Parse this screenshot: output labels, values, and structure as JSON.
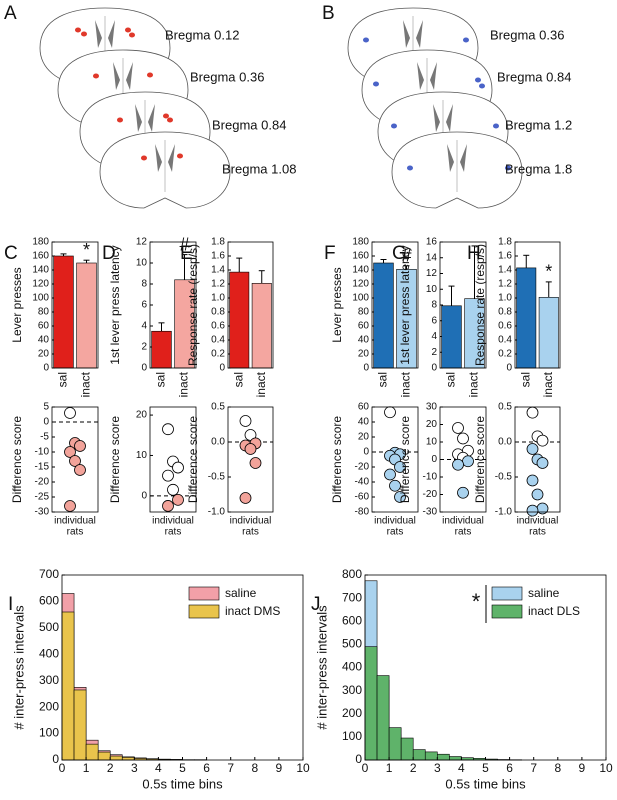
{
  "sections_a": {
    "panel": "A",
    "labels": [
      "Bregma 0.12",
      "Bregma 0.36",
      "Bregma 0.84",
      "Bregma 1.08"
    ],
    "color": "#e0382a"
  },
  "sections_b": {
    "panel": "B",
    "labels": [
      "Bregma 0.36",
      "Bregma 0.84",
      "Bregma 1.2",
      "Bregma 1.8"
    ],
    "color": "#4a63c8"
  },
  "chart_data": [
    {
      "type": "bar",
      "panel": "C",
      "ylabel": "Lever presses",
      "categories": [
        "sal",
        "inact"
      ],
      "values": [
        160,
        150
      ],
      "errors": [
        3,
        4
      ],
      "colors": [
        "#e0201b",
        "#f4a6a0"
      ],
      "annotation": "*",
      "ylim": [
        0,
        180
      ],
      "yticks": [
        0,
        20,
        40,
        60,
        80,
        100,
        120,
        140,
        160,
        180
      ]
    },
    {
      "type": "dot",
      "ylabel": "Difference score",
      "xlabel": [
        "individual",
        "rats"
      ],
      "values": [
        3,
        -7,
        -8,
        -10,
        -13,
        -16,
        -28
      ],
      "color": "#f2a39a",
      "positive_color": "#ffffff",
      "ylim": [
        -30,
        5
      ],
      "yticks": [
        -30,
        -25,
        -20,
        -15,
        -10,
        -5,
        0,
        5
      ]
    },
    {
      "type": "bar",
      "panel": "D",
      "ylabel": "1st lever press latency",
      "categories": [
        "sal",
        "inact"
      ],
      "values": [
        3.5,
        8.4
      ],
      "errors": [
        0.8,
        2.4
      ],
      "colors": [
        "#e0201b",
        "#f4a6a0"
      ],
      "annotation": "#",
      "ylim": [
        0,
        12
      ],
      "yticks": [
        0,
        2,
        4,
        6,
        8,
        10,
        12
      ]
    },
    {
      "type": "dot",
      "ylabel": "Difference score",
      "xlabel": [
        "individual",
        "rats"
      ],
      "values": [
        16.5,
        8.5,
        7,
        5,
        1.5,
        -1,
        -2.5
      ],
      "color": "#f2a39a",
      "positive_color": "#ffffff",
      "ylim": [
        -4,
        22
      ],
      "yticks": [
        0,
        10,
        20
      ]
    },
    {
      "type": "bar",
      "panel": "E",
      "ylabel": "Response rate (resp/s)",
      "categories": [
        "sal",
        "inact"
      ],
      "values": [
        1.37,
        1.21
      ],
      "errors": [
        0.2,
        0.18
      ],
      "colors": [
        "#e0201b",
        "#f4a6a0"
      ],
      "ylim": [
        0,
        1.8
      ],
      "yticks": [
        0,
        0.2,
        0.4,
        0.6,
        0.8,
        {
          "value": 1,
          "label": "1.0"
        },
        1.2,
        1.4,
        1.6,
        1.8
      ]
    },
    {
      "type": "dot",
      "ylabel": "Difference score",
      "xlabel": [
        "individual",
        "rats"
      ],
      "values": [
        0.3,
        0.1,
        -0.02,
        -0.05,
        -0.1,
        -0.3,
        -0.8
      ],
      "color": "#f2a39a",
      "positive_color": "#ffffff",
      "ylim": [
        -1,
        0.5
      ],
      "yticks": [
        {
          "value": -1,
          "label": "-1.0"
        },
        -0.5,
        {
          "value": 0,
          "label": "0.0"
        },
        0.5
      ]
    },
    {
      "type": "bar",
      "panel": "F",
      "ylabel": "Lever presses",
      "categories": [
        "sal",
        "inact"
      ],
      "values": [
        150,
        141
      ],
      "errors": [
        5,
        5
      ],
      "colors": [
        "#1f6fb5",
        "#a9d2ee"
      ],
      "annotation": "#",
      "ylim": [
        0,
        180
      ],
      "yticks": [
        0,
        20,
        40,
        60,
        80,
        100,
        120,
        140,
        160,
        180
      ]
    },
    {
      "type": "dot",
      "ylabel": "Difference score",
      "xlabel": [
        "individual",
        "rats"
      ],
      "values": [
        53,
        -1,
        -3,
        -5,
        -10,
        -20,
        -30,
        -45,
        -60
      ],
      "color": "#a9d2ee",
      "positive_color": "#ffffff",
      "ylim": [
        -80,
        60
      ],
      "yticks": [
        -80,
        -60,
        -40,
        -20,
        0,
        20,
        40,
        60
      ]
    },
    {
      "type": "bar",
      "panel": "G",
      "ylabel": "1st lever press latency",
      "categories": [
        "sal",
        "inact"
      ],
      "values": [
        7.9,
        8.8
      ],
      "errors": [
        2.5,
        6.7
      ],
      "colors": [
        "#1f6fb5",
        "#a9d2ee"
      ],
      "ylim": [
        0,
        16
      ],
      "yticks": [
        0,
        2,
        4,
        6,
        8,
        10,
        12,
        14,
        16
      ]
    },
    {
      "type": "dot",
      "ylabel": "Difference score",
      "xlabel": [
        "individual",
        "rats"
      ],
      "values": [
        18,
        12,
        5,
        3,
        1,
        -1,
        -3,
        -19
      ],
      "color": "#a9d2ee",
      "positive_color": "#ffffff",
      "ylim": [
        -30,
        30
      ],
      "yticks": [
        -30,
        -20,
        -10,
        0,
        10,
        20,
        30
      ]
    },
    {
      "type": "bar",
      "panel": "H",
      "ylabel": "Response rate (resp/s)",
      "categories": [
        "sal",
        "inact"
      ],
      "values": [
        1.43,
        1.01
      ],
      "errors": [
        0.18,
        0.22
      ],
      "colors": [
        "#1f6fb5",
        "#a9d2ee"
      ],
      "annotation": "*",
      "ylim": [
        0,
        1.8
      ],
      "yticks": [
        0,
        0.2,
        0.4,
        0.6,
        0.8,
        {
          "value": 1,
          "label": "1.0"
        },
        1.2,
        1.4,
        1.6,
        1.8
      ]
    },
    {
      "type": "dot",
      "ylabel": "Difference score",
      "xlabel": [
        "individual",
        "rats"
      ],
      "values": [
        0.42,
        0.08,
        0.02,
        -0.1,
        -0.25,
        -0.3,
        -0.55,
        -0.75,
        -0.95,
        -0.98
      ],
      "color": "#a9d2ee",
      "positive_color": "#ffffff",
      "ylim": [
        -1,
        0.5
      ],
      "yticks": [
        {
          "value": -1,
          "label": "-1.0"
        },
        -0.5,
        {
          "value": 0,
          "label": "0.0"
        },
        0.5
      ]
    },
    {
      "type": "histogram",
      "panel": "I",
      "xlabel": "0.5s time bins",
      "ylabel": "# inter-press intervals",
      "legend": "upper right",
      "bins": [
        0,
        0.5,
        1,
        1.5,
        2,
        2.5,
        3,
        3.5,
        4,
        4.5,
        5,
        5.5,
        6,
        6.5,
        7,
        7.5,
        8,
        8.5,
        9,
        9.5,
        10
      ],
      "series": [
        {
          "name": "saline",
          "color": "#f2a0a8",
          "values": [
            630,
            275,
            75,
            35,
            20,
            12,
            8,
            5,
            3,
            2,
            1,
            1,
            0,
            0,
            0,
            0,
            0,
            0,
            0,
            0
          ]
        },
        {
          "name": "inact DMS",
          "color": "#e9c44c",
          "values": [
            560,
            265,
            60,
            30,
            15,
            10,
            6,
            4,
            3,
            2,
            1,
            1,
            0,
            0,
            0,
            0,
            0,
            0,
            0,
            0
          ]
        }
      ],
      "xlim": [
        0,
        10
      ],
      "xticks": [
        0,
        1,
        2,
        3,
        4,
        5,
        6,
        7,
        8,
        9,
        10
      ],
      "ylim": [
        0,
        700
      ],
      "yticks": [
        0,
        100,
        200,
        300,
        400,
        500,
        600,
        700
      ]
    },
    {
      "type": "histogram",
      "panel": "J",
      "xlabel": "0.5s time bins",
      "ylabel": "# inter-press intervals",
      "legend": "upper right",
      "annotation": "*",
      "bins": [
        0,
        0.5,
        1,
        1.5,
        2,
        2.5,
        3,
        3.5,
        4,
        4.5,
        5,
        5.5,
        6,
        6.5,
        7,
        7.5,
        8,
        8.5,
        9,
        9.5,
        10
      ],
      "series": [
        {
          "name": "saline",
          "color": "#a9d2ee",
          "values": [
            775,
            345,
            110,
            60,
            30,
            25,
            15,
            10,
            5,
            3,
            2,
            1,
            1,
            0,
            0,
            0,
            0,
            0,
            0,
            0
          ]
        },
        {
          "name": "inact DLS",
          "color": "#5fb36a",
          "values": [
            490,
            365,
            140,
            95,
            45,
            35,
            25,
            15,
            10,
            7,
            4,
            2,
            1,
            0,
            0,
            0,
            0,
            0,
            0,
            0
          ]
        }
      ],
      "xlim": [
        0,
        10
      ],
      "xticks": [
        0,
        1,
        2,
        3,
        4,
        5,
        6,
        7,
        8,
        9,
        10
      ],
      "ylim": [
        0,
        800
      ],
      "yticks": [
        0,
        100,
        200,
        300,
        400,
        500,
        600,
        700,
        800
      ]
    }
  ]
}
